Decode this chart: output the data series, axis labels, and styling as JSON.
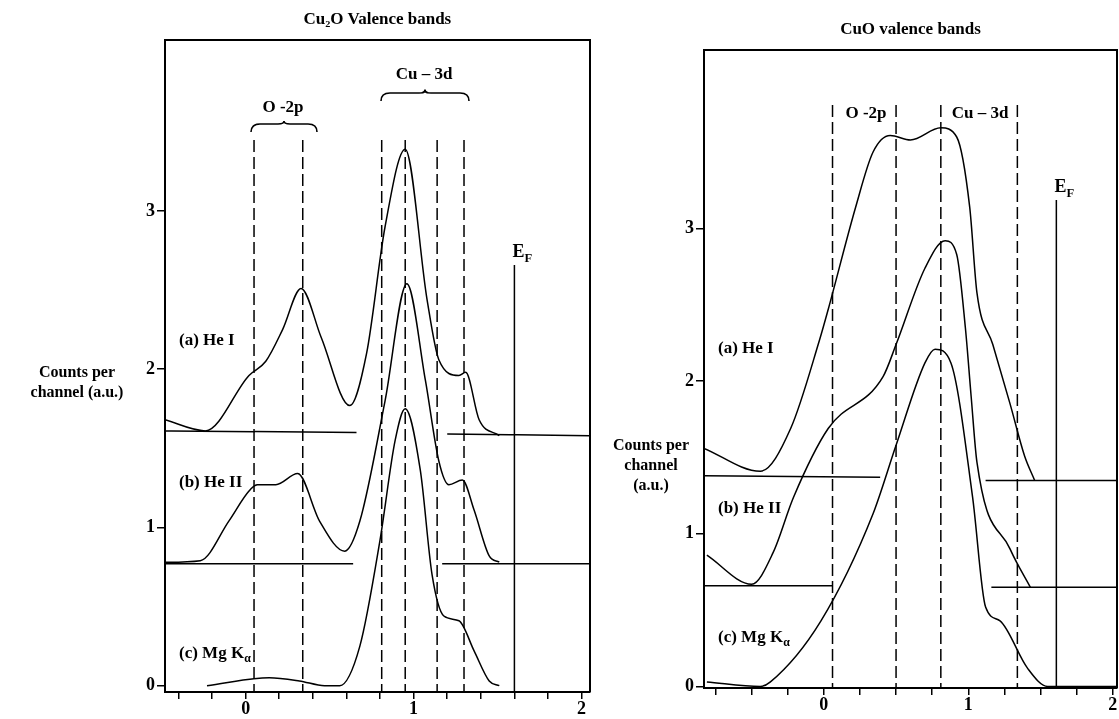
{
  "chart_data": [
    {
      "type": "line",
      "title": "Cu₂O Valence bands",
      "ylabel": "Counts per channel (a.u.)",
      "legend": false,
      "grid": false,
      "xlim": [
        -0.48,
        2.05
      ],
      "ylim": [
        -0.04,
        4.08
      ],
      "xticks": [
        {
          "value": -0.4,
          "label": null
        },
        {
          "value": -0.2,
          "label": null
        },
        0,
        {
          "value": 0.2,
          "label": null
        },
        {
          "value": 0.4,
          "label": null
        },
        {
          "value": 0.6,
          "label": null
        },
        {
          "value": 0.8,
          "label": null
        },
        1,
        {
          "value": 1.2,
          "label": null
        },
        {
          "value": 1.4,
          "label": null
        },
        {
          "value": 1.6,
          "label": null
        },
        {
          "value": 1.8,
          "label": null
        },
        2
      ],
      "yticks": [
        0,
        1,
        2,
        3
      ],
      "series": [
        {
          "name": "(a) He I",
          "color": "#000000",
          "x": [
            -0.48,
            -0.24,
            0.02,
            0.12,
            0.22,
            0.33,
            0.45,
            0.62,
            0.72,
            0.83,
            0.95,
            1.08,
            1.15,
            1.27,
            1.31,
            1.39,
            1.51
          ],
          "values": [
            1.68,
            1.61,
            1.96,
            2.05,
            2.25,
            2.51,
            2.2,
            1.77,
            2.1,
            2.9,
            3.39,
            2.44,
            2.06,
            1.96,
            1.98,
            1.68,
            1.58
          ]
        },
        {
          "name": "(b) He II",
          "color": "#000000",
          "x": [
            -0.48,
            -0.27,
            -0.1,
            0.02,
            0.07,
            0.18,
            0.31,
            0.44,
            0.59,
            0.68,
            0.83,
            0.96,
            1.07,
            1.15,
            1.21,
            1.29,
            1.36,
            1.45,
            1.51
          ],
          "values": [
            0.78,
            0.79,
            1.04,
            1.23,
            1.27,
            1.27,
            1.34,
            1.04,
            0.85,
            1.04,
            1.8,
            2.54,
            1.93,
            1.42,
            1.27,
            1.3,
            1.11,
            0.82,
            0.78
          ]
        },
        {
          "name": "(c) Mg K$_{α}$",
          "color": "#000000",
          "x": [
            -0.23,
            0.14,
            0.32,
            0.47,
            0.56,
            0.68,
            0.8,
            0.89,
            0.95,
            1.04,
            1.11,
            1.18,
            1.27,
            1.36,
            1.45,
            1.51
          ],
          "values": [
            0,
            0.05,
            0.03,
            0,
            0,
            0.25,
            0.92,
            1.55,
            1.75,
            1.36,
            0.7,
            0.44,
            0.41,
            0.22,
            0.03,
            0
          ]
        },
        {
          "color": "#000000",
          "x": [
            -0.48,
            0.66,
            0.9,
            1.2,
            2.05
          ],
          "values": [
            1.61,
            1.6,
            null,
            1.59,
            1.58
          ]
        },
        {
          "color": "#000000",
          "x": [
            -0.48,
            0.64,
            0.9,
            1.17,
            2.05
          ],
          "values": [
            0.77,
            0.77,
            null,
            0.77,
            0.77
          ]
        }
      ],
      "ref_lines": [
        {
          "axis": "x",
          "value": 0.05,
          "line_style": "dashed"
        },
        {
          "axis": "x",
          "value": 0.34,
          "line_style": "dashed"
        },
        {
          "axis": "x",
          "value": 0.81,
          "line_style": "dashed"
        },
        {
          "axis": "x",
          "value": 0.95,
          "line_style": "dashed"
        },
        {
          "axis": "x",
          "value": 1.14,
          "line_style": "dashed"
        },
        {
          "axis": "x",
          "value": 1.3,
          "line_style": "dashed"
        },
        {
          "axis": "x",
          "value": 1.6,
          "label": "E$_{F}$",
          "line_style": "solid"
        }
      ],
      "annotations": [
        "O -2p",
        "Cu – 3d"
      ]
    },
    {
      "type": "line",
      "title": "CuO valence bands",
      "ylabel": "Counts per channel (a.u.)",
      "legend": false,
      "grid": false,
      "xlim": [
        -0.83,
        2.03
      ],
      "ylim": [
        -0.01,
        4.17
      ],
      "xticks": [
        {
          "value": -0.75,
          "label": null
        },
        {
          "value": -0.5,
          "label": null
        },
        {
          "value": -0.25,
          "label": null
        },
        0,
        {
          "value": 0.25,
          "label": null
        },
        {
          "value": 0.5,
          "label": null
        },
        {
          "value": 0.75,
          "label": null
        },
        1,
        {
          "value": 1.25,
          "label": null
        },
        {
          "value": 1.5,
          "label": null
        },
        {
          "value": 1.75,
          "label": null
        },
        2
      ],
      "yticks": [
        0,
        1,
        2,
        3
      ],
      "series": [
        {
          "name": "(a) He I",
          "color": "#000000",
          "x": [
            -0.83,
            -0.44,
            -0.23,
            -0.03,
            0.03,
            0.22,
            0.34,
            0.46,
            0.6,
            0.81,
            0.92,
            1.01,
            1.06,
            1.17,
            1.29,
            1.39,
            1.46
          ],
          "values": [
            1.56,
            1.41,
            1.69,
            2.27,
            2.47,
            3.14,
            3.5,
            3.61,
            3.58,
            3.66,
            3.6,
            3.14,
            2.58,
            2.24,
            1.85,
            1.51,
            1.35
          ]
        },
        {
          "name": "(b) He II",
          "color": "#000000",
          "x": [
            -0.81,
            -0.5,
            -0.35,
            -0.21,
            0.03,
            0.41,
            0.5,
            0.7,
            0.84,
            0.92,
            0.98,
            1.02,
            1.06,
            1.29,
            1.43
          ],
          "values": [
            0.86,
            0.67,
            0.88,
            1.24,
            1.69,
            2.03,
            2.24,
            2.74,
            2.92,
            2.83,
            2.35,
            1.9,
            1.47,
            0.9,
            0.65
          ]
        },
        {
          "name": "(c) Mg K$_{α}$",
          "color": "#000000",
          "x": [
            -0.81,
            -0.44,
            -0.37,
            -0.02,
            0.34,
            0.5,
            0.7,
            0.77,
            0.88,
            1.03,
            1.12,
            1.22,
            1.41,
            1.55,
            2.03
          ],
          "values": [
            0.03,
            0,
            0.03,
            0.43,
            1.13,
            1.58,
            2.12,
            2.21,
            2.12,
            1.24,
            0.52,
            0.43,
            0.12,
            0,
            0
          ]
        },
        {
          "color": "#000000",
          "x": [
            -0.83,
            0.39,
            0.8,
            1.12,
            2.03
          ],
          "values": [
            1.38,
            1.37,
            null,
            1.35,
            1.35
          ]
        },
        {
          "color": "#000000",
          "x": [
            -0.83,
            0.06,
            0.6,
            1.16,
            2.03
          ],
          "values": [
            0.66,
            0.66,
            null,
            0.65,
            0.65
          ]
        }
      ],
      "ref_lines": [
        {
          "axis": "x",
          "value": 0.06,
          "line_style": "dashed"
        },
        {
          "axis": "x",
          "value": 0.5,
          "line_style": "dashed"
        },
        {
          "axis": "x",
          "value": 0.81,
          "line_style": "dashed"
        },
        {
          "axis": "x",
          "value": 1.34,
          "line_style": "dashed"
        },
        {
          "axis": "x",
          "value": 1.61,
          "label": "E$_{F}$",
          "line_style": "solid"
        }
      ],
      "annotations": [
        "O -2p",
        "Cu – 3d"
      ]
    }
  ]
}
